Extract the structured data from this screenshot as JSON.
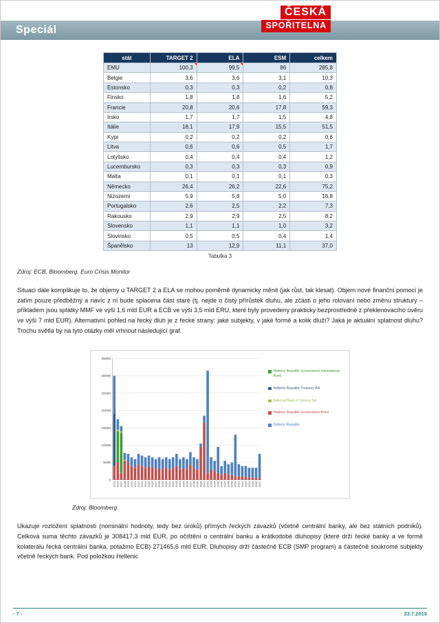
{
  "header": {
    "title": "Speciál",
    "logo_line1": "ČESKÁ",
    "logo_line2": "SPOŘITELNA"
  },
  "table": {
    "caption": "Tabulka 3",
    "columns": [
      "stát",
      "TARGET 2",
      "ELA",
      "ESM",
      "celkem"
    ],
    "rows": [
      [
        "EMU",
        "100,3",
        "99,5",
        "86",
        "285,8"
      ],
      [
        "Belgie",
        "3,6",
        "3,6",
        "3,1",
        "10,3"
      ],
      [
        "Estonsko",
        "0,3",
        "0,3",
        "0,2",
        "0,8"
      ],
      [
        "Finsko",
        "1,8",
        "1,8",
        "1,6",
        "5,2"
      ],
      [
        "Francie",
        "20,8",
        "20,6",
        "17,8",
        "59,3"
      ],
      [
        "Irsko",
        "1,7",
        "1,7",
        "1,5",
        "4,8"
      ],
      [
        "Itálie",
        "18,1",
        "17,9",
        "15,5",
        "51,5"
      ],
      [
        "Kypr",
        "0,2",
        "0,2",
        "0,2",
        "0,6"
      ],
      [
        "Litva",
        "0,6",
        "0,6",
        "0,5",
        "1,7"
      ],
      [
        "Lotyšsko",
        "0,4",
        "0,4",
        "0,4",
        "1,2"
      ],
      [
        "Lucembursko",
        "0,3",
        "0,3",
        "0,3",
        "0,9"
      ],
      [
        "Malta",
        "0,1",
        "0,1",
        "0,1",
        "0,3"
      ],
      [
        "Německo",
        "26,4",
        "26,2",
        "22,6",
        "75,2"
      ],
      [
        "Nizozemí",
        "5,9",
        "5,8",
        "5,0",
        "16,8"
      ],
      [
        "Portugalsko",
        "2,6",
        "2,5",
        "2,2",
        "7,3"
      ],
      [
        "Rakousko",
        "2,9",
        "2,9",
        "2,5",
        "8,2"
      ],
      [
        "Slovensko",
        "1,1",
        "1,1",
        "1,0",
        "3,2"
      ],
      [
        "Slovinsko",
        "0,5",
        "0,5",
        "0,4",
        "1,4"
      ],
      [
        "Španělsko",
        "13",
        "12,9",
        "11,1",
        "37,0"
      ]
    ],
    "marker_cells": [
      [
        0,
        1
      ],
      [
        0,
        2
      ]
    ]
  },
  "sources": {
    "table_source": "Zdroj: ECB, Bloomberg. Euro Crisis Monitor",
    "chart_source": "Zdroj: Bloomberg"
  },
  "paragraphs": {
    "p1": "Situaci dále komplikuje to, že objemy u TARGET 2 a ELA se mohou poměrně dynamicky měnit (jak růst, tak klesat). Objem nové finanční pomoci je zatím pouze předběžný a navíc z ní bude splacena část staré (tj. nejde o čistý přírůstek dluhu, ale zčásti o jeho rolování nebo změnu struktury – příkladem jsou splátky MMF ve výši 1,6 mld EUR a ECB ve výši 3,5 mld ERU, které byly provedeny prakticky bezprostředně z překlenovacího úvěru ve výši 7 mld EUR). Alternativní pohled na řecký dluh je z řecké strany: jaké subjekty, v jaké formě a kolik dluží? Jaká je aktuální splatnost dluhu? Trochu světla by na tyto otázky měl vrhnout následující graf.",
    "p2": "Ukazuje rozložení splatnosti (nominální hodnoty, tedy bez úroků) přímých řeckých závazků (včetně centrální banky, ale bez státních podniků). Celková suma těchto závazků je 308417,3 mld EUR, po očištění o centrální banku a krátkodobé dluhopisy (které drží řecké banky a ve formě kolaterálu řecká centrální banka, potažmo ECB) 271465,6 mld EUR. Dluhopisy drží částečně ECB (SMP program) a částečně soukromé subjekty včetně řeckých bank. Pod položkou Hellenic"
  },
  "chart_data": {
    "type": "bar",
    "stacked": true,
    "title": "",
    "xlabel": "",
    "ylabel": "",
    "ylim": [
      0,
      35000
    ],
    "ytick_step": 5000,
    "grid": true,
    "legend_position": "right",
    "x": [
      2015,
      2016,
      2017,
      2018,
      2019,
      2020,
      2021,
      2022,
      2023,
      2024,
      2025,
      2026,
      2027,
      2028,
      2029,
      2030,
      2031,
      2032,
      2033,
      2034,
      2035,
      2036,
      2037,
      2038,
      2039,
      2040,
      2041,
      2042,
      2043,
      2044,
      2045,
      2046,
      2047,
      2048,
      2049,
      2050,
      2051,
      2052,
      2053,
      2054,
      2055,
      2056,
      2057
    ],
    "series": [
      {
        "name": "Hellenic Republic Government International Bond",
        "color": "#3f9c35",
        "values": [
          0,
          9000,
          11500,
          0,
          0,
          0,
          0,
          0,
          0,
          0,
          0,
          0,
          0,
          0,
          0,
          0,
          0,
          0,
          0,
          0,
          0,
          0,
          0,
          0,
          0,
          0,
          0,
          0,
          0,
          0,
          0,
          0,
          0,
          0,
          0,
          0,
          0,
          0,
          0,
          0,
          0,
          0,
          0
        ]
      },
      {
        "name": "Hellenic Republic Treasury Bill",
        "color": "#2e5e8c",
        "values": [
          15000,
          0,
          0,
          0,
          0,
          0,
          0,
          0,
          0,
          0,
          0,
          0,
          0,
          0,
          0,
          0,
          0,
          0,
          0,
          0,
          0,
          0,
          0,
          0,
          0,
          0,
          0,
          0,
          0,
          0,
          0,
          0,
          0,
          0,
          0,
          0,
          0,
          0,
          0,
          0,
          0,
          0,
          0
        ]
      },
      {
        "name": "National Bank of Greece SA",
        "color": "#9bbb59",
        "values": [
          0,
          500,
          500,
          300,
          0,
          0,
          0,
          0,
          0,
          0,
          0,
          0,
          0,
          0,
          0,
          0,
          0,
          0,
          0,
          0,
          0,
          0,
          0,
          0,
          0,
          0,
          0,
          0,
          0,
          0,
          0,
          0,
          0,
          0,
          0,
          0,
          0,
          0,
          0,
          0,
          0,
          0,
          0
        ]
      },
      {
        "name": "Hellenic Republic Government Bond",
        "color": "#c0504d",
        "values": [
          4000,
          5000,
          2000,
          5500,
          5000,
          4000,
          3500,
          4500,
          4000,
          3500,
          4000,
          3500,
          3000,
          3500,
          3000,
          3500,
          3000,
          3500,
          4000,
          3000,
          3500,
          3000,
          4500,
          3500,
          3000,
          9500,
          16500,
          2000,
          3000,
          2500,
          2000,
          1500,
          2000,
          1500,
          1500,
          1000,
          1000,
          1000,
          800,
          700,
          700,
          600,
          500
        ]
      },
      {
        "name": "Hellenic Republic",
        "color": "#4f81bd",
        "values": [
          11000,
          3000,
          1500,
          2000,
          2500,
          2500,
          2500,
          3000,
          3000,
          3000,
          3000,
          3000,
          3000,
          3000,
          3000,
          3000,
          3000,
          3000,
          3500,
          3000,
          3000,
          3000,
          3500,
          3000,
          3000,
          1000,
          2000,
          29500,
          3500,
          3000,
          7500,
          2500,
          3500,
          3000,
          3500,
          12000,
          3500,
          3000,
          3200,
          2800,
          2800,
          2900,
          7000
        ]
      }
    ],
    "stack_order": [
      3,
      0,
      2,
      1,
      4
    ]
  },
  "footer": {
    "page_number": "- 7 -",
    "date": "23.7.2015"
  },
  "colors": {
    "banner_teal": "#7d99a4",
    "logo_red": "#d40a10",
    "table_header_navy": "#17375e",
    "row_alt_blue": "#dce6f1",
    "footer_teal": "#2e8080"
  }
}
